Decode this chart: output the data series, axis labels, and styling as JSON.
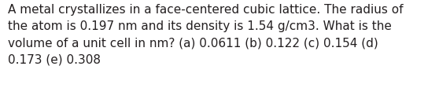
{
  "text": "A metal crystallizes in a face-centered cubic lattice. The radius of\nthe atom is 0.197 nm and its density is 1.54 g/cm3. What is the\nvolume of a unit cell in nm? (a) 0.0611 (b) 0.122 (c) 0.154 (d)\n0.173 (e) 0.308",
  "background_color": "#ffffff",
  "text_color": "#231f20",
  "font_size": 11.0,
  "fig_width": 5.58,
  "fig_height": 1.26,
  "dpi": 100
}
